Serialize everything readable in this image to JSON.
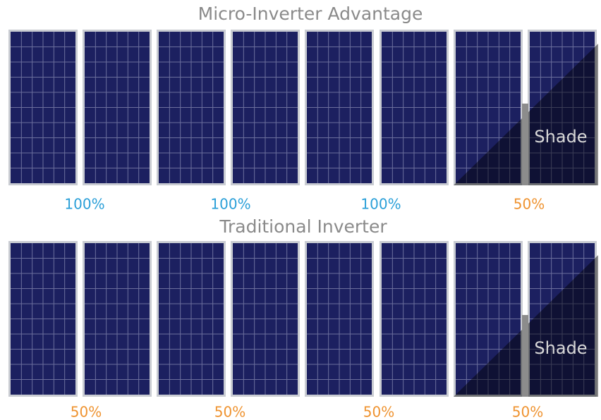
{
  "sections": [
    {
      "title": "Micro-Inverter Advantage",
      "labels": [
        "100%",
        "100%",
        "100%",
        "50%"
      ],
      "shade_label": "Shade"
    },
    {
      "title": "Traditional Inverter",
      "labels": [
        "50%",
        "50%",
        "50%",
        "50%"
      ],
      "shade_label": "Shade"
    }
  ]
}
